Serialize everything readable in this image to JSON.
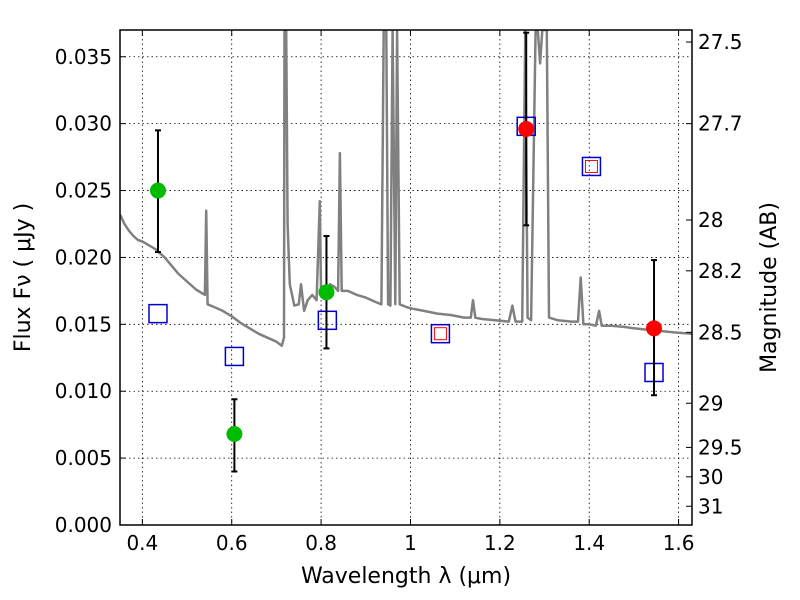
{
  "chart_data": {
    "type": "scatter",
    "xlabel": "Wavelength  λ (μm)",
    "ylabel_left": "Flux  Fν  ( μJy )",
    "ylabel_right": "Magnitude (AB)",
    "xlim": [
      0.35,
      1.63
    ],
    "ylim": [
      0.0,
      0.037
    ],
    "x_ticks": [
      0.4,
      0.6,
      0.8,
      1.0,
      1.2,
      1.4,
      1.6
    ],
    "x_tick_labels": [
      "0.4",
      "0.6",
      "0.8",
      "1",
      "1.2",
      "1.4",
      "1.6"
    ],
    "y_ticks": [
      0.0,
      0.005,
      0.01,
      0.015,
      0.02,
      0.025,
      0.03,
      0.035
    ],
    "y_tick_labels": [
      "0.000",
      "0.005",
      "0.010",
      "0.015",
      "0.020",
      "0.025",
      "0.030",
      "0.035"
    ],
    "mag_ticks": [
      {
        "label": "27.5",
        "y": 0.0361
      },
      {
        "label": "27.7",
        "y": 0.03
      },
      {
        "label": "28",
        "y": 0.0228
      },
      {
        "label": "28.2",
        "y": 0.019
      },
      {
        "label": "28.5",
        "y": 0.0144
      },
      {
        "label": "29",
        "y": 0.0091
      },
      {
        "label": "29.5",
        "y": 0.0058
      },
      {
        "label": "30",
        "y": 0.0036
      },
      {
        "label": "31",
        "y": 0.0014
      }
    ],
    "grid": true,
    "colors": {
      "sed": "#808080",
      "green": "#00bb00",
      "red": "#ff0000",
      "blue": "#0000cc",
      "errorbar": "#000000"
    },
    "series": [
      {
        "kind": "line",
        "points": [
          [
            0.35,
            0.0232
          ],
          [
            0.36,
            0.0225
          ],
          [
            0.37,
            0.022
          ],
          [
            0.38,
            0.0216
          ],
          [
            0.39,
            0.0213
          ],
          [
            0.4,
            0.0212
          ],
          [
            0.41,
            0.021
          ],
          [
            0.42,
            0.0208
          ],
          [
            0.43,
            0.0206
          ],
          [
            0.44,
            0.0203
          ],
          [
            0.45,
            0.02
          ],
          [
            0.46,
            0.0196
          ],
          [
            0.48,
            0.0188
          ],
          [
            0.5,
            0.0182
          ],
          [
            0.52,
            0.0176
          ],
          [
            0.54,
            0.0172
          ],
          [
            0.543,
            0.0235
          ],
          [
            0.546,
            0.0165
          ],
          [
            0.56,
            0.0163
          ],
          [
            0.58,
            0.016
          ],
          [
            0.6,
            0.0156
          ],
          [
            0.62,
            0.0151
          ],
          [
            0.64,
            0.0147
          ],
          [
            0.66,
            0.0143
          ],
          [
            0.68,
            0.014
          ],
          [
            0.7,
            0.0137
          ],
          [
            0.712,
            0.0134
          ],
          [
            0.717,
            0.014
          ],
          [
            0.718,
            0.037
          ],
          [
            0.722,
            0.037
          ],
          [
            0.725,
            0.0225
          ],
          [
            0.73,
            0.018
          ],
          [
            0.74,
            0.0164
          ],
          [
            0.75,
            0.0165
          ],
          [
            0.755,
            0.018
          ],
          [
            0.762,
            0.016
          ],
          [
            0.77,
            0.0168
          ],
          [
            0.78,
            0.0172
          ],
          [
            0.79,
            0.0168
          ],
          [
            0.797,
            0.0242
          ],
          [
            0.8,
            0.0172
          ],
          [
            0.81,
            0.0173
          ],
          [
            0.82,
            0.018
          ],
          [
            0.83,
            0.0178
          ],
          [
            0.838,
            0.0175
          ],
          [
            0.842,
            0.0278
          ],
          [
            0.846,
            0.0175
          ],
          [
            0.86,
            0.0175
          ],
          [
            0.88,
            0.0172
          ],
          [
            0.9,
            0.017
          ],
          [
            0.92,
            0.0167
          ],
          [
            0.935,
            0.0165
          ],
          [
            0.94,
            0.037
          ],
          [
            0.946,
            0.037
          ],
          [
            0.95,
            0.0165
          ],
          [
            0.955,
            0.0164
          ],
          [
            0.96,
            0.037
          ],
          [
            0.966,
            0.0165
          ],
          [
            0.97,
            0.037
          ],
          [
            0.976,
            0.0165
          ],
          [
            0.99,
            0.0163
          ],
          [
            1.0,
            0.0162
          ],
          [
            1.03,
            0.016
          ],
          [
            1.06,
            0.0158
          ],
          [
            1.09,
            0.0157
          ],
          [
            1.12,
            0.0155
          ],
          [
            1.135,
            0.0155
          ],
          [
            1.14,
            0.0168
          ],
          [
            1.145,
            0.0155
          ],
          [
            1.16,
            0.0154
          ],
          [
            1.19,
            0.0153
          ],
          [
            1.22,
            0.0152
          ],
          [
            1.228,
            0.0164
          ],
          [
            1.235,
            0.0152
          ],
          [
            1.25,
            0.0152
          ],
          [
            1.257,
            0.037
          ],
          [
            1.262,
            0.0155
          ],
          [
            1.27,
            0.0153
          ],
          [
            1.28,
            0.037
          ],
          [
            1.285,
            0.037
          ],
          [
            1.29,
            0.0345
          ],
          [
            1.295,
            0.037
          ],
          [
            1.305,
            0.037
          ],
          [
            1.31,
            0.0155
          ],
          [
            1.33,
            0.0153
          ],
          [
            1.36,
            0.0152
          ],
          [
            1.375,
            0.0152
          ],
          [
            1.381,
            0.0185
          ],
          [
            1.387,
            0.015
          ],
          [
            1.4,
            0.015
          ],
          [
            1.415,
            0.0149
          ],
          [
            1.422,
            0.016
          ],
          [
            1.428,
            0.0149
          ],
          [
            1.45,
            0.0149
          ],
          [
            1.48,
            0.0148
          ],
          [
            1.5,
            0.0147
          ],
          [
            1.53,
            0.0146
          ],
          [
            1.56,
            0.0145
          ],
          [
            1.59,
            0.0144
          ],
          [
            1.63,
            0.0143
          ]
        ]
      },
      {
        "kind": "points-with-error",
        "color": "green",
        "points": [
          {
            "x": 0.435,
            "y": 0.025,
            "lo": 0.0204,
            "hi": 0.0295
          },
          {
            "x": 0.606,
            "y": 0.0068,
            "lo": 0.004,
            "hi": 0.0094
          },
          {
            "x": 0.812,
            "y": 0.0174,
            "lo": 0.0132,
            "hi": 0.0216
          }
        ]
      },
      {
        "kind": "points-with-error",
        "color": "red",
        "points": [
          {
            "x": 1.259,
            "y": 0.0296,
            "lo": 0.0224,
            "hi": 0.0368
          },
          {
            "x": 1.545,
            "y": 0.0147,
            "lo": 0.0097,
            "hi": 0.0198
          }
        ]
      },
      {
        "kind": "open-squares",
        "color": "blue",
        "points": [
          {
            "x": 0.435,
            "y": 0.0158
          },
          {
            "x": 0.606,
            "y": 0.0126
          },
          {
            "x": 0.814,
            "y": 0.0153
          },
          {
            "x": 1.067,
            "y": 0.0143
          },
          {
            "x": 1.259,
            "y": 0.0298
          },
          {
            "x": 1.405,
            "y": 0.0268
          },
          {
            "x": 1.545,
            "y": 0.0114
          }
        ]
      },
      {
        "kind": "small-red-squares",
        "color": "red",
        "points": [
          {
            "x": 1.067,
            "y": 0.0143
          },
          {
            "x": 1.405,
            "y": 0.0268
          }
        ]
      }
    ]
  }
}
